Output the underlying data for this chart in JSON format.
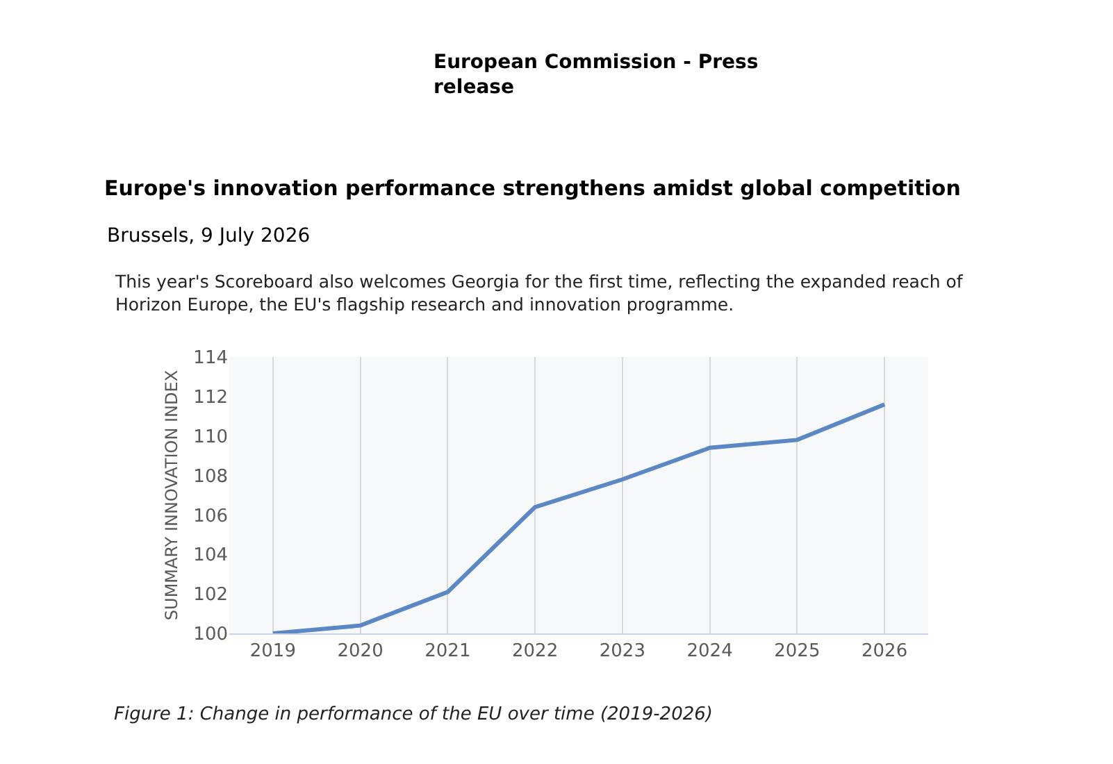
{
  "chart_data": {
    "type": "line",
    "title": "Europe's innovation performance strengthens amidst global competition",
    "subtitle": "Brussels, 9 July 2026",
    "annotations": [
      "European Commission - Press release",
      "This year's Scoreboard also welcomes Georgia for the first time, reflecting the expanded reach of Horizon Europe, the EU's flagship research and innovation programme.",
      "Figure 1: Change in performance of the EU over time (2019-2026)"
    ],
    "ylabel": "SUMMARY INNOVATION INDEX",
    "categories": [
      "2019",
      "2020",
      "2021",
      "2022",
      "2023",
      "2024",
      "2025",
      "2026"
    ],
    "series": [
      {
        "color": "#5b87c5",
        "values": [
          100,
          100.4,
          102.1,
          106.4,
          107.8,
          109.4,
          109.8,
          111.6
        ]
      }
    ],
    "ylim": [
      100,
      114
    ],
    "yticks": [
      100,
      102,
      104,
      106,
      108,
      110,
      112,
      114
    ],
    "grid": "x",
    "marker": "none",
    "line_style": "solid"
  }
}
